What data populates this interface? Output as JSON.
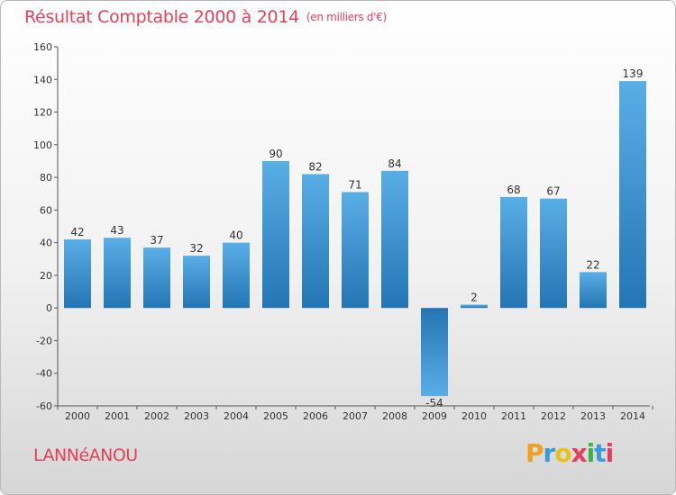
{
  "header": {
    "title": "Résultat Comptable 2000 à 2014",
    "subtitle": "(en milliers d'€)"
  },
  "footer": {
    "town": "LANNéANOU",
    "brand_letters": [
      "P",
      "r",
      "o",
      "x",
      "i",
      "t",
      "i"
    ],
    "brand_colors": [
      "#f0a020",
      "#3b9ad9",
      "#e8c020",
      "#e0415b",
      "#3bb34a",
      "#3b9ad9",
      "#e0415b"
    ]
  },
  "chart_data": {
    "type": "bar",
    "title": "Résultat Comptable 2000 à 2014",
    "ylabel": "(en milliers d'€)",
    "xlabel": "",
    "categories": [
      "2000",
      "2001",
      "2002",
      "2003",
      "2004",
      "2005",
      "2006",
      "2007",
      "2008",
      "2009",
      "2010",
      "2011",
      "2012",
      "2013",
      "2014"
    ],
    "values": [
      42,
      43,
      37,
      32,
      40,
      90,
      82,
      71,
      84,
      -54,
      2,
      68,
      67,
      22,
      139
    ],
    "ylim": [
      -60,
      160
    ],
    "yticks": [
      -60,
      -40,
      -20,
      0,
      20,
      40,
      60,
      80,
      100,
      120,
      140,
      160
    ],
    "grid": false,
    "colors": {
      "bar_light": "#5aaee6",
      "bar_dark": "#2475b4",
      "axis": "#555555",
      "label": "#333333"
    }
  }
}
